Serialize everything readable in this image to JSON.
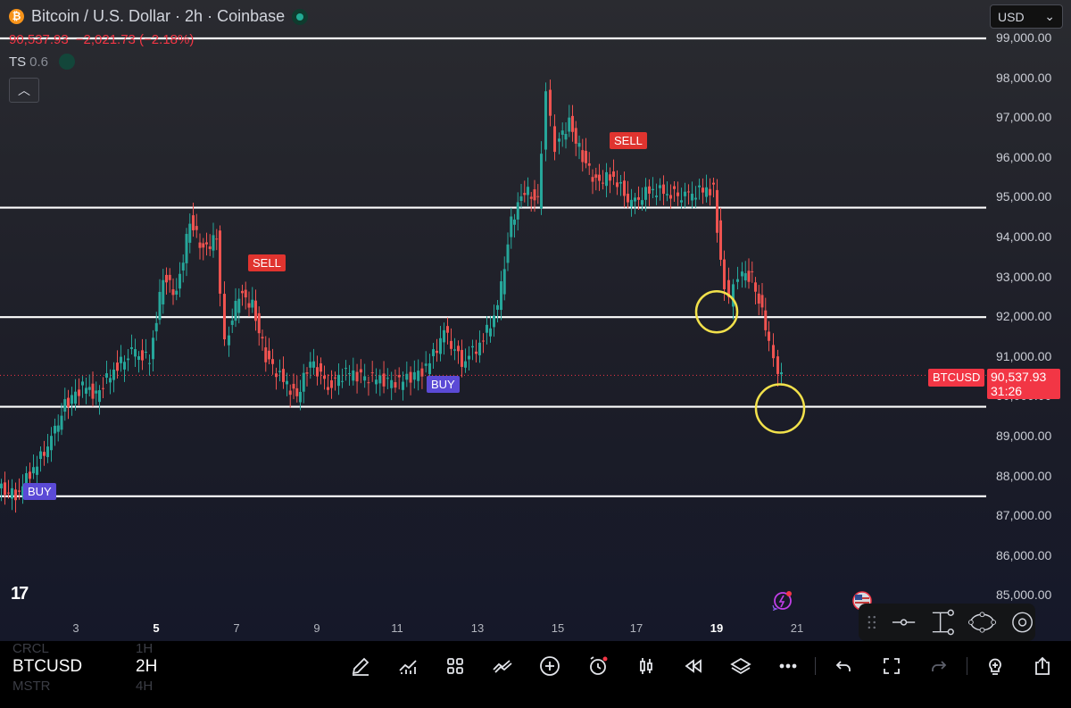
{
  "header": {
    "title": "Bitcoin / U.S. Dollar · 2h · Coinbase",
    "logo_glyph": "₿",
    "ohlc_price": "90,537.93",
    "ohlc_change": "−2,021.73 (−2.18%)",
    "ts_label": "TS",
    "ts_value": "0.6",
    "collapse_glyph": "︿"
  },
  "currency": {
    "label": "USD",
    "chevron": "⌄"
  },
  "price_axis": [
    "99,000.00",
    "98,000.00",
    "97,000.00",
    "96,000.00",
    "95,000.00",
    "94,000.00",
    "93,000.00",
    "92,000.00",
    "91,000.00",
    "90,000.00",
    "89,000.00",
    "88,000.00",
    "87,000.00",
    "86,000.00",
    "85,000.00"
  ],
  "date_axis": [
    {
      "label": "3",
      "bold": false
    },
    {
      "label": "5",
      "bold": true
    },
    {
      "label": "7",
      "bold": false
    },
    {
      "label": "9",
      "bold": false
    },
    {
      "label": "11",
      "bold": false
    },
    {
      "label": "13",
      "bold": false
    },
    {
      "label": "15",
      "bold": false
    },
    {
      "label": "17",
      "bold": false
    },
    {
      "label": "19",
      "bold": true
    },
    {
      "label": "21",
      "bold": false
    }
  ],
  "last_price": {
    "symbol": "BTCUSD",
    "price": "90,537.93",
    "countdown": "31:26",
    "value": 90537.93
  },
  "signals": {
    "sell1": "SELL",
    "sell2": "SELL",
    "buy1": "BUY",
    "buy2": "BUY"
  },
  "horizontal_lines": [
    99000,
    94750,
    92000,
    89750,
    87500
  ],
  "highlight_circles": [
    92000,
    89750
  ],
  "colors": {
    "up": "#26a69a",
    "down": "#ef5350",
    "accent": "#f23645",
    "circle": "#f2e14b",
    "hline": "#ffffff"
  },
  "bottom_bar": {
    "symbol": "BTCUSD",
    "timeframe": "2H",
    "watchlist_bg": [
      "CRCL",
      "MSTR"
    ],
    "watchlist_bg_tf": [
      "1H",
      "4H"
    ]
  },
  "toolbar_icons": [
    "pencil-icon",
    "indicators-icon",
    "layout-grid-icon",
    "compare-icon",
    "add-icon",
    "alert-icon",
    "candles-icon",
    "replay-icon",
    "layers-icon",
    "more-icon",
    "undo-icon",
    "fullscreen-icon",
    "redo-icon",
    "idea-icon",
    "share-icon"
  ],
  "drawing_tools": [
    "drag-handle-icon",
    "horizontal-ray-icon",
    "fib-range-icon",
    "ellipse-icon",
    "circle-target-icon"
  ]
}
